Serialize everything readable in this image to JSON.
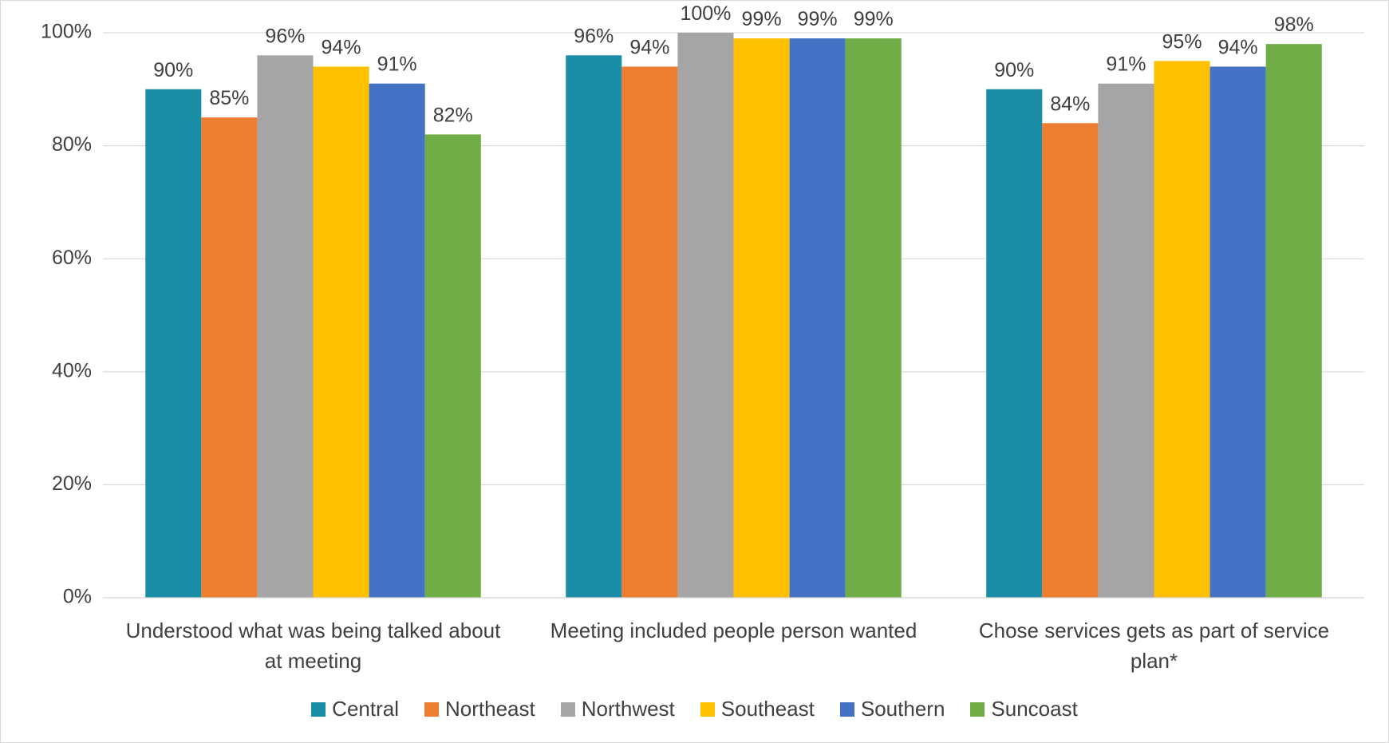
{
  "chart_data": {
    "type": "bar",
    "categories": [
      "Understood what was being talked about at meeting",
      "Meeting included people person wanted",
      "Chose services gets as part of service plan*"
    ],
    "series": [
      {
        "name": "Central",
        "color": "#1a8ea6",
        "values": [
          90,
          96,
          90
        ],
        "value_labels": [
          "90%",
          "96%",
          "90%"
        ]
      },
      {
        "name": "Northeast",
        "color": "#ed7d31",
        "values": [
          85,
          94,
          84
        ],
        "value_labels": [
          "85%",
          "94%",
          "84%"
        ]
      },
      {
        "name": "Northwest",
        "color": "#a5a5a5",
        "values": [
          96,
          100,
          91
        ],
        "value_labels": [
          "96%",
          "100%",
          "91%"
        ]
      },
      {
        "name": "Southeast",
        "color": "#ffc000",
        "values": [
          94,
          99,
          95
        ],
        "value_labels": [
          "94%",
          "99%",
          "95%"
        ]
      },
      {
        "name": "Southern",
        "color": "#4472c4",
        "values": [
          91,
          99,
          94
        ],
        "value_labels": [
          "91%",
          "99%",
          "94%"
        ]
      },
      {
        "name": "Suncoast",
        "color": "#70ad47",
        "values": [
          82,
          99,
          98
        ],
        "value_labels": [
          "82%",
          "99%",
          "98%"
        ]
      }
    ],
    "ylim": [
      0,
      100
    ],
    "yticks": [
      {
        "value": 0,
        "label": "0%"
      },
      {
        "value": 20,
        "label": "20%"
      },
      {
        "value": 40,
        "label": "40%"
      },
      {
        "value": 60,
        "label": "60%"
      },
      {
        "value": 80,
        "label": "80%"
      },
      {
        "value": 100,
        "label": "100%"
      }
    ],
    "grid": true,
    "legend": "bottom"
  }
}
